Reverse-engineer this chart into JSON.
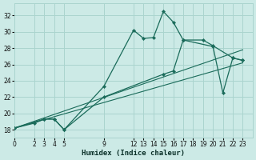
{
  "xlabel": "Humidex (Indice chaleur)",
  "xlim": [
    0,
    24
  ],
  "ylim": [
    17,
    33.5
  ],
  "yticks": [
    18,
    20,
    22,
    24,
    26,
    28,
    30,
    32
  ],
  "xticks": [
    0,
    2,
    3,
    4,
    5,
    9,
    12,
    13,
    14,
    15,
    16,
    17,
    18,
    19,
    20,
    21,
    22,
    23
  ],
  "bg_color": "#cceae6",
  "grid_color": "#aad4ce",
  "line_color": "#1a6b5a",
  "series": [
    {
      "x": [
        0,
        2,
        3,
        4,
        5,
        9,
        12,
        13,
        14,
        15,
        16,
        17,
        19,
        20,
        22,
        23
      ],
      "y": [
        18.2,
        18.8,
        19.3,
        19.3,
        18.0,
        23.3,
        30.2,
        29.2,
        29.3,
        32.5,
        31.2,
        29.0,
        29.0,
        28.3,
        26.8,
        26.5
      ],
      "markers": true
    },
    {
      "x": [
        0,
        3,
        4,
        5,
        9,
        15,
        16,
        17,
        20,
        21,
        22,
        23
      ],
      "y": [
        18.2,
        19.3,
        19.3,
        18.0,
        22.0,
        24.8,
        25.2,
        29.0,
        28.2,
        22.5,
        26.8,
        26.5
      ],
      "markers": true
    },
    {
      "x": [
        0,
        23
      ],
      "y": [
        18.2,
        27.8
      ],
      "markers": false
    },
    {
      "x": [
        0,
        23
      ],
      "y": [
        18.2,
        26.2
      ],
      "markers": false
    }
  ]
}
